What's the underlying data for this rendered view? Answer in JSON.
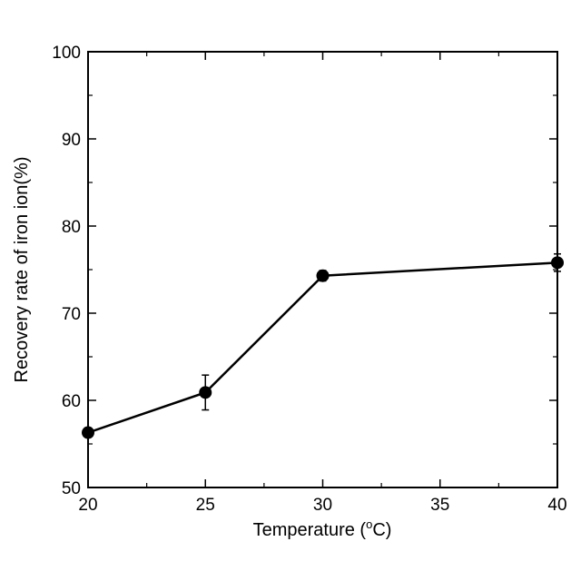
{
  "chart_data": {
    "type": "line",
    "title": "",
    "xlabel": "Temperature (",
    "xlabel_degree": "o",
    "xlabel_unit": "C)",
    "ylabel": "Recovery rate of iron ion(%)",
    "x": [
      20,
      25,
      30,
      40
    ],
    "series": [
      {
        "values": [
          56.3,
          60.9,
          74.3,
          75.8
        ],
        "errors": [
          0.4,
          2.0,
          0.6,
          1.0
        ]
      }
    ],
    "xlim": [
      20,
      40
    ],
    "ylim": [
      50,
      100
    ],
    "xticks": [
      20,
      25,
      30,
      35,
      40
    ],
    "yticks": [
      50,
      60,
      70,
      80,
      90,
      100
    ],
    "xtick_labels": [
      "20",
      "25",
      "30",
      "35",
      "40"
    ],
    "ytick_labels": [
      "50",
      "60",
      "70",
      "80",
      "90",
      "100"
    ],
    "grid": false,
    "legend": "none",
    "line_color": "#000000",
    "marker": "filled-circle"
  }
}
